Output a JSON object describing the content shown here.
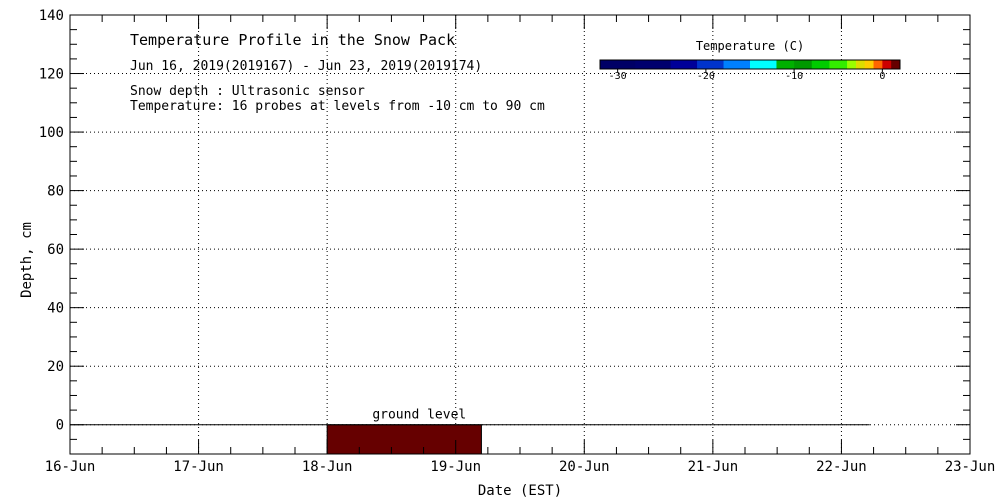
{
  "chart_data": {
    "type": "heatmap",
    "title": "Temperature Profile in the Snow Pack",
    "subtitle": "Jun 16, 2019(2019167) - Jun 23, 2019(2019174)",
    "notes": [
      "Snow depth : Ultrasonic sensor",
      "Temperature: 16 probes at levels from -10 cm to 90 cm"
    ],
    "xlabel": "Date (EST)",
    "ylabel": "Depth, cm",
    "x_ticks": [
      "16-Jun",
      "17-Jun",
      "18-Jun",
      "19-Jun",
      "20-Jun",
      "21-Jun",
      "22-Jun",
      "23-Jun"
    ],
    "x_range_days": [
      0,
      7
    ],
    "ylim": [
      -10,
      140
    ],
    "y_ticks": [
      0,
      20,
      40,
      60,
      80,
      100,
      120,
      140
    ],
    "grid": true,
    "annotations": [
      {
        "text": "ground level",
        "y": 0
      }
    ],
    "ground_line": {
      "y": 0,
      "x_start_day": 0,
      "x_end_day": 6.22
    },
    "cells": [
      {
        "x_start_day": 2.0,
        "x_end_day": 3.2,
        "y_bottom": -10,
        "y_top": 0,
        "color": "#660000",
        "temperature_bin": "warmest"
      }
    ],
    "colorbar": {
      "title": "Temperature (C)",
      "min": -32,
      "max": 2,
      "ticks": [
        {
          "value": -30,
          "label": "-30"
        },
        {
          "value": -20,
          "label": "-20"
        },
        {
          "value": -10,
          "label": "-10"
        },
        {
          "value": 0,
          "label": "0"
        }
      ],
      "bins": [
        {
          "from": -32,
          "to": -28,
          "color": "#000066"
        },
        {
          "from": -28,
          "to": -24,
          "color": "#00006e"
        },
        {
          "from": -24,
          "to": -21,
          "color": "#000099"
        },
        {
          "from": -21,
          "to": -18,
          "color": "#0033cc"
        },
        {
          "from": -18,
          "to": -15,
          "color": "#0080ff"
        },
        {
          "from": -15,
          "to": -12,
          "color": "#00ffff"
        },
        {
          "from": -12,
          "to": -10,
          "color": "#00b000"
        },
        {
          "from": -10,
          "to": -8,
          "color": "#009900"
        },
        {
          "from": -8,
          "to": -6,
          "color": "#00cc00"
        },
        {
          "from": -6,
          "to": -4,
          "color": "#33ee00"
        },
        {
          "from": -4,
          "to": -3,
          "color": "#99ff00"
        },
        {
          "from": -3,
          "to": -2,
          "color": "#dddd00"
        },
        {
          "from": -2,
          "to": -1,
          "color": "#ffcc00"
        },
        {
          "from": -1,
          "to": 0,
          "color": "#ff6600"
        },
        {
          "from": 0,
          "to": 1,
          "color": "#cc0000"
        },
        {
          "from": 1,
          "to": 2,
          "color": "#660000"
        }
      ]
    }
  }
}
